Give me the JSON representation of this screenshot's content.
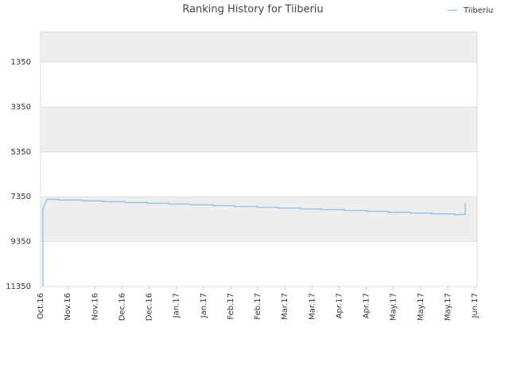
{
  "chart_data": {
    "type": "line",
    "title": "Ranking History for Tiiberiu",
    "x": [
      1.3,
      1.3,
      3.5,
      9.7,
      9.7,
      22.9,
      22.9,
      34.7,
      34.7,
      46.6,
      46.6,
      58.9,
      58.9,
      70.8,
      70.8,
      83.1,
      83.1,
      95.4,
      95.4,
      107.3,
      107.3,
      119.6,
      119.6,
      131.4,
      131.4,
      143.7,
      143.7,
      155.6,
      155.6,
      167.9,
      167.9,
      180.2,
      180.2,
      192.1,
      192.1,
      204.4,
      204.4,
      216.3,
      216.3,
      228.6,
      228.6,
      234.7,
      234.7
    ],
    "series": [
      {
        "name": "Tiiberiu",
        "color": "#99c4f0",
        "values": [
          11350,
          7900,
          7460,
          7460,
          7496,
          7496,
          7532,
          7532,
          7568,
          7568,
          7604,
          7604,
          7640,
          7640,
          7676,
          7676,
          7712,
          7712,
          7748,
          7748,
          7784,
          7784,
          7820,
          7820,
          7856,
          7856,
          7892,
          7892,
          7928,
          7928,
          7964,
          7964,
          8000,
          8000,
          8036,
          8036,
          8072,
          8072,
          8108,
          8108,
          8144,
          8144,
          7640
        ]
      }
    ],
    "xlim": [
      0,
      240
    ],
    "xticks": [
      {
        "value": 0,
        "label": "Oct.16"
      },
      {
        "value": 15,
        "label": "Nov.16"
      },
      {
        "value": 30,
        "label": "Nov.16"
      },
      {
        "value": 45,
        "label": "Dec.16"
      },
      {
        "value": 60,
        "label": "Dec.16"
      },
      {
        "value": 75,
        "label": "Jan.17"
      },
      {
        "value": 90,
        "label": "Jan.17"
      },
      {
        "value": 105,
        "label": "Feb.17"
      },
      {
        "value": 120,
        "label": "Feb.17"
      },
      {
        "value": 135,
        "label": "Mar.17"
      },
      {
        "value": 150,
        "label": "Mar.17"
      },
      {
        "value": 165,
        "label": "Apr.17"
      },
      {
        "value": 180,
        "label": "Apr.17"
      },
      {
        "value": 195,
        "label": "May.17"
      },
      {
        "value": 210,
        "label": "May.17"
      },
      {
        "value": 225,
        "label": "May.17"
      },
      {
        "value": 240,
        "label": "Jun.17"
      }
    ],
    "ylim": [
      11350,
      0
    ],
    "yticks": [
      1350,
      3350,
      5350,
      7350,
      9350,
      11350
    ],
    "grid": true,
    "legend": "top-right"
  }
}
